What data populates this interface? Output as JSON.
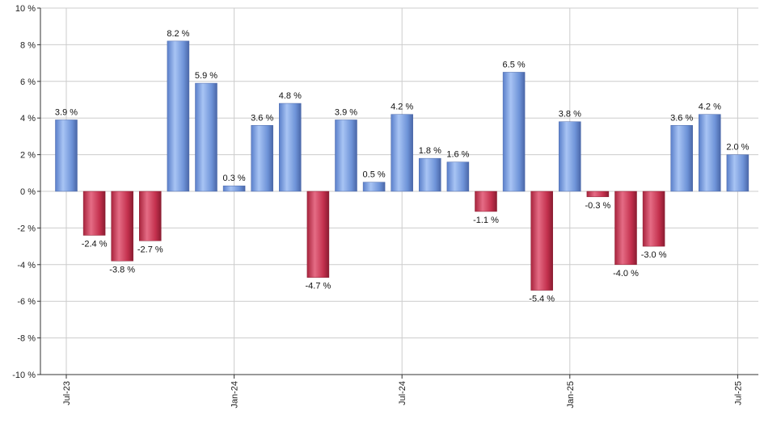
{
  "chart_data": {
    "type": "bar",
    "categories": [
      "Jul-23",
      "Aug-23",
      "Sep-23",
      "Oct-23",
      "Nov-23",
      "Dec-23",
      "Jan-24",
      "Feb-24",
      "Mar-24",
      "Apr-24",
      "May-24",
      "Jun-24",
      "Jul-24",
      "Aug-24",
      "Sep-24",
      "Oct-24",
      "Nov-24",
      "Dec-24",
      "Jan-25",
      "Feb-25",
      "Mar-25",
      "Apr-25",
      "May-25",
      "Jun-25",
      "Jul-25"
    ],
    "values": [
      3.9,
      -2.4,
      -3.8,
      -2.7,
      8.2,
      5.9,
      0.3,
      3.6,
      4.8,
      -4.7,
      3.9,
      0.5,
      4.2,
      1.8,
      1.6,
      -1.1,
      6.5,
      -5.4,
      3.8,
      -0.3,
      -4.0,
      -3.0,
      3.6,
      4.2,
      2.0
    ],
    "data_labels": [
      "3.9 %",
      "-2.4 %",
      "-3.8 %",
      "-2.7 %",
      "8.2 %",
      "5.9 %",
      "0.3 %",
      "3.6 %",
      "4.8 %",
      "-4.7 %",
      "3.9 %",
      "0.5 %",
      "4.2 %",
      "1.8 %",
      "1.6 %",
      "-1.1 %",
      "6.5 %",
      "-5.4 %",
      "3.8 %",
      "-0.3 %",
      "-4.0 %",
      "-3.0 %",
      "3.6 %",
      "4.2 %",
      "2.0 %"
    ],
    "x_tick_labels": [
      "Jul-23",
      "Jan-24",
      "Jul-24",
      "Jan-25",
      "Jul-25"
    ],
    "x_tick_indices": [
      0,
      6,
      12,
      18,
      24
    ],
    "y_ticks": [
      10,
      8,
      6,
      4,
      2,
      0,
      -2,
      -4,
      -6,
      -8,
      -10
    ],
    "y_tick_labels": [
      "10 %",
      "8 %",
      "6 %",
      "4 %",
      "2 %",
      "0 %",
      "-2 %",
      "-4 %",
      "-6 %",
      "-8 %",
      "-10 %"
    ],
    "ylim": [
      -10,
      10
    ],
    "grid": true,
    "legend": "none",
    "title": "",
    "xlabel": "",
    "ylabel": "",
    "colors": {
      "positive": "#6f95dc",
      "negative": "#c8334f",
      "grid": "#cccccc",
      "axis": "#333333"
    }
  }
}
